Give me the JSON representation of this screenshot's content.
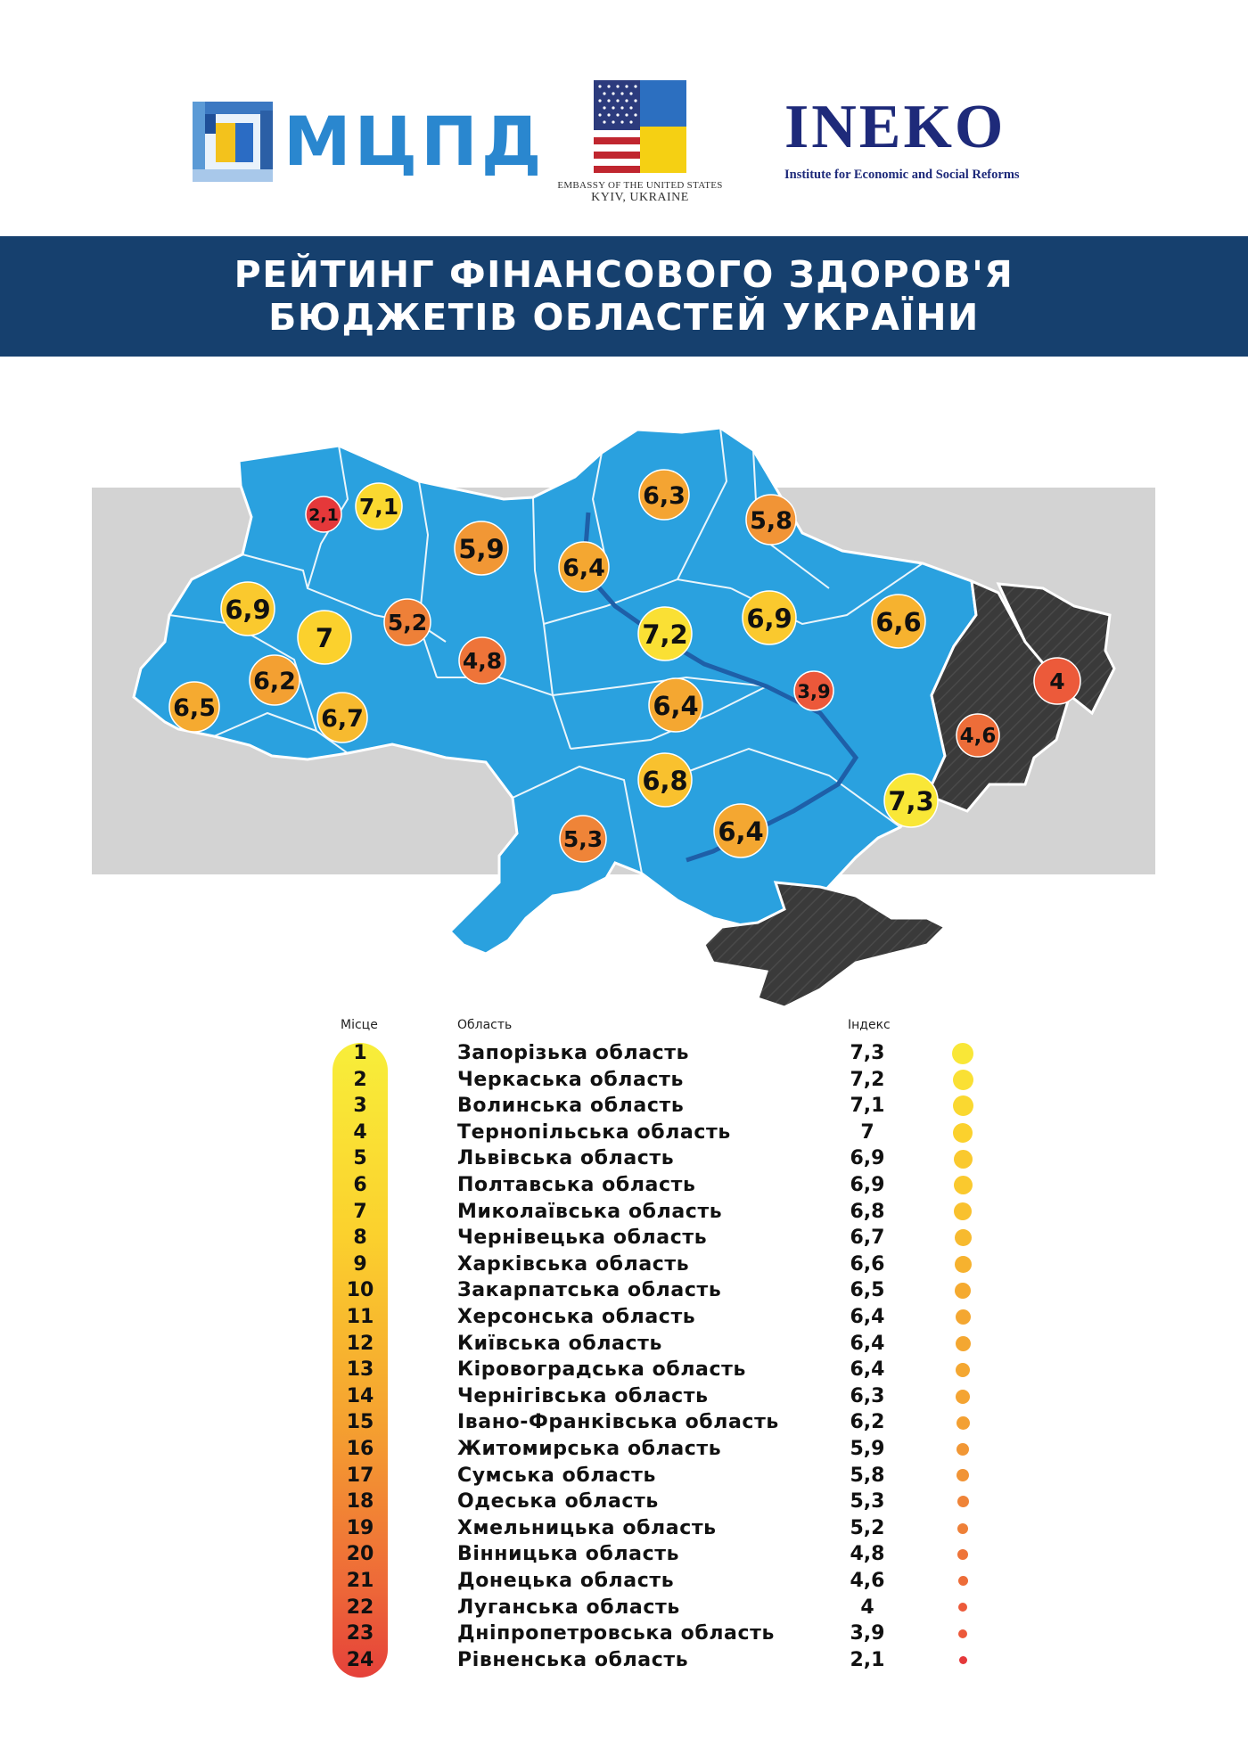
{
  "header": {
    "mcpd_logo_text": "МЦПД",
    "embassy_line1": "EMBASSY OF THE UNITED STATES",
    "embassy_line2": "KYIV, UKRAINE",
    "ineko_logo_text": "INEKO",
    "ineko_subtitle": "Institute for Economic and Social Reforms"
  },
  "title": {
    "line1": "РЕЙТИНГ ФІНАНСОВОГО ЗДОРОВ'Я",
    "line2": "БЮДЖЕТІВ ОБЛАСТЕЙ УКРАЇНИ"
  },
  "colors": {
    "banner": "#16406e",
    "map_region": "#2aa1df",
    "occupied": "#3a3a3a",
    "map_backdrop": "#d3d3d3",
    "scale_top": "#f8ee3a",
    "scale_bottom": "#e5413a"
  },
  "table": {
    "col_rank": "Місце",
    "col_region": "Область",
    "col_index": "Індекс",
    "rows": [
      {
        "rank": "1",
        "region": "Запорізька область",
        "index": "7,3"
      },
      {
        "rank": "2",
        "region": "Черкаська область",
        "index": "7,2"
      },
      {
        "rank": "3",
        "region": "Волинська область",
        "index": "7,1"
      },
      {
        "rank": "4",
        "region": "Тернопільська область",
        "index": "7"
      },
      {
        "rank": "5",
        "region": "Львівська область",
        "index": "6,9"
      },
      {
        "rank": "6",
        "region": "Полтавська область",
        "index": "6,9"
      },
      {
        "rank": "7",
        "region": "Миколаївська область",
        "index": "6,8"
      },
      {
        "rank": "8",
        "region": "Чернівецька область",
        "index": "6,7"
      },
      {
        "rank": "9",
        "region": "Харківська область",
        "index": "6,6"
      },
      {
        "rank": "10",
        "region": "Закарпатська область",
        "index": "6,5"
      },
      {
        "rank": "11",
        "region": "Херсонська область",
        "index": "6,4"
      },
      {
        "rank": "12",
        "region": "Київська область",
        "index": "6,4"
      },
      {
        "rank": "13",
        "region": "Кіровоградська область",
        "index": "6,4"
      },
      {
        "rank": "14",
        "region": "Чернігівська область",
        "index": "6,3"
      },
      {
        "rank": "15",
        "region": "Івано-Франківська область",
        "index": "6,2"
      },
      {
        "rank": "16",
        "region": "Житомирська область",
        "index": "5,9"
      },
      {
        "rank": "17",
        "region": "Сумська область",
        "index": "5,8"
      },
      {
        "rank": "18",
        "region": "Одеська область",
        "index": "5,3"
      },
      {
        "rank": "19",
        "region": "Хмельницька область",
        "index": "5,2"
      },
      {
        "rank": "20",
        "region": "Вінницька область",
        "index": "4,8"
      },
      {
        "rank": "21",
        "region": "Донецька область",
        "index": "4,6"
      },
      {
        "rank": "22",
        "region": "Луганська область",
        "index": "4"
      },
      {
        "rank": "23",
        "region": "Дніпропетровська область",
        "index": "3,9"
      },
      {
        "rank": "24",
        "region": "Рівненська область",
        "index": "2,1"
      }
    ]
  },
  "map_markers": [
    {
      "region": "Рівненська",
      "label": "2,1",
      "value": 2.1
    },
    {
      "region": "Волинська",
      "label": "7,1",
      "value": 7.1
    },
    {
      "region": "Житомирська",
      "label": "5,9",
      "value": 5.9
    },
    {
      "region": "Київська",
      "label": "6,4",
      "value": 6.4
    },
    {
      "region": "Чернігівська",
      "label": "6,3",
      "value": 6.3
    },
    {
      "region": "Сумська",
      "label": "5,8",
      "value": 5.8
    },
    {
      "region": "Львівська",
      "label": "6,9",
      "value": 6.9
    },
    {
      "region": "Тернопільська",
      "label": "7",
      "value": 7
    },
    {
      "region": "Хмельницька",
      "label": "5,2",
      "value": 5.2
    },
    {
      "region": "Черкаська",
      "label": "7,2",
      "value": 7.2
    },
    {
      "region": "Полтавська",
      "label": "6,9",
      "value": 6.9
    },
    {
      "region": "Харківська",
      "label": "6,6",
      "value": 6.6
    },
    {
      "region": "Вінницька",
      "label": "4,8",
      "value": 4.8
    },
    {
      "region": "Луганська",
      "label": "4",
      "value": 4
    },
    {
      "region": "Івано-Франківська",
      "label": "6,2",
      "value": 6.2
    },
    {
      "region": "Закарпатська",
      "label": "6,5",
      "value": 6.5
    },
    {
      "region": "Чернівецька",
      "label": "6,7",
      "value": 6.7
    },
    {
      "region": "Кіровоградська",
      "label": "6,4",
      "value": 6.4
    },
    {
      "region": "Дніпропетровська",
      "label": "3,9",
      "value": 3.9
    },
    {
      "region": "Донецька",
      "label": "4,6",
      "value": 4.6
    },
    {
      "region": "Миколаївська",
      "label": "6,8",
      "value": 6.8
    },
    {
      "region": "Запорізька",
      "label": "7,3",
      "value": 7.3
    },
    {
      "region": "Одеська",
      "label": "5,3",
      "value": 5.3
    },
    {
      "region": "Херсонська",
      "label": "6,4",
      "value": 6.4
    }
  ]
}
